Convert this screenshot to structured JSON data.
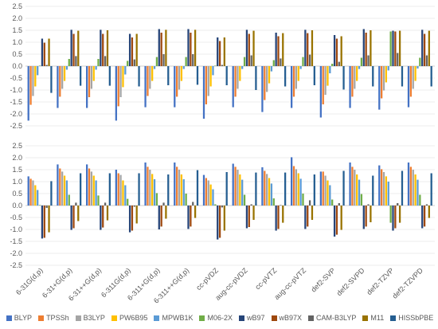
{
  "chart_data": [
    {
      "type": "bar",
      "panel": "top",
      "ylim": [
        -2.5,
        2.5
      ],
      "yticks": [
        "2.5",
        "2.0",
        "1.5",
        "1.0",
        "0.5",
        "0.0",
        "-0.5",
        "-1.0",
        "-1.5",
        "-2.0",
        "-2.5"
      ],
      "categories": [
        "6-31G(d,p)",
        "6-31+G(d,p)",
        "6-31++G(d,p)",
        "6-311G(d,p)",
        "6-311+G(d,p)",
        "6-311++G(d,p)",
        "cc-pVDZ",
        "aug-cc-pVDZ",
        "cc-pVTZ",
        "aug-cc-pVTZ",
        "def2-SVP",
        "def2-SVPD",
        "def2-TZVP",
        "def2-TZVPD"
      ],
      "series": [
        {
          "name": "BLYP",
          "values": [
            -2.28,
            -1.75,
            -1.75,
            -2.28,
            -1.72,
            -1.72,
            -2.2,
            -1.72,
            -1.92,
            -1.75,
            -2.15,
            -1.75,
            -1.82,
            -1.72
          ]
        },
        {
          "name": "TPSSh",
          "values": [
            -1.62,
            -1.28,
            -1.3,
            -1.68,
            -1.25,
            -1.28,
            -1.6,
            -1.28,
            -1.42,
            -1.28,
            -1.6,
            -1.28,
            -1.35,
            -1.28
          ]
        },
        {
          "name": "B3LYP",
          "values": [
            -1.25,
            -0.95,
            -0.95,
            -1.3,
            -0.95,
            -0.98,
            -1.25,
            -0.95,
            -1.08,
            -0.95,
            -1.2,
            -0.95,
            -1.02,
            -0.95
          ]
        },
        {
          "name": "PW6B95",
          "values": [
            -0.85,
            -0.62,
            -0.62,
            -0.88,
            -0.62,
            -0.62,
            -0.85,
            -0.62,
            -0.72,
            -0.62,
            -0.82,
            -0.62,
            -0.68,
            -0.62
          ]
        },
        {
          "name": "MPWB1K",
          "values": [
            -0.38,
            -0.15,
            -0.15,
            -0.35,
            -0.12,
            -0.12,
            -0.38,
            -0.12,
            -0.22,
            -0.12,
            -0.3,
            -0.12,
            -0.18,
            -0.1
          ]
        },
        {
          "name": "M06-2X",
          "values": [
            0.02,
            0.3,
            0.3,
            0.22,
            0.38,
            0.38,
            0.02,
            0.38,
            0.25,
            0.38,
            0.1,
            0.35,
            1.45,
            0.35
          ]
        },
        {
          "name": "wB97",
          "values": [
            1.15,
            1.52,
            1.52,
            1.35,
            1.55,
            1.55,
            1.2,
            1.52,
            1.4,
            1.52,
            1.3,
            1.55,
            1.48,
            1.52
          ]
        },
        {
          "name": "wB97X",
          "values": [
            0.98,
            1.35,
            1.35,
            1.2,
            1.4,
            1.4,
            1.05,
            1.35,
            1.25,
            1.38,
            1.15,
            1.4,
            1.45,
            1.35
          ]
        },
        {
          "name": "CAM-B3LYP",
          "values": [
            0.05,
            0.42,
            0.42,
            0.28,
            0.5,
            0.5,
            0.05,
            0.45,
            0.32,
            0.48,
            0.18,
            0.45,
            0.55,
            0.45
          ]
        },
        {
          "name": "M11",
          "values": [
            1.15,
            1.48,
            1.5,
            1.35,
            1.52,
            1.52,
            1.2,
            1.48,
            1.38,
            1.5,
            1.25,
            1.5,
            1.48,
            1.48
          ]
        },
        {
          "name": "HISSbPBE",
          "values": [
            -1.12,
            -0.82,
            -0.82,
            -0.85,
            -0.8,
            -0.78,
            -0.8,
            -1.0,
            -0.85,
            -0.8,
            -0.98,
            -0.85,
            -0.85,
            -0.85
          ]
        }
      ]
    },
    {
      "type": "bar",
      "panel": "bottom",
      "ylim": [
        -2.5,
        2.5
      ],
      "yticks": [
        "2.5",
        "2.0",
        "1.5",
        "1.0",
        "0.5",
        "0.0",
        "-0.5",
        "-1.0",
        "-1.5",
        "-2.0",
        "-2.5"
      ],
      "categories": [
        "6-31G(d,p)",
        "6-31+G(d,p)",
        "6-31++G(d,p)",
        "6-311G(d,p)",
        "6-311+G(d,p)",
        "6-311++G(d,p)",
        "cc-pVDZ",
        "aug-cc-pVDZ",
        "cc-pVTZ",
        "aug-cc-pVTZ",
        "def2-SVP",
        "def2-SVPD",
        "def2-TZVP",
        "def2-TZVPD"
      ],
      "series": [
        {
          "name": "BLYP",
          "values": [
            1.22,
            1.72,
            1.72,
            1.5,
            1.8,
            1.8,
            1.28,
            1.75,
            1.6,
            2.02,
            1.42,
            1.8,
            1.68,
            1.8
          ]
        },
        {
          "name": "TPSSh",
          "values": [
            1.12,
            1.55,
            1.55,
            1.35,
            1.62,
            1.62,
            1.15,
            1.62,
            1.45,
            1.65,
            1.42,
            1.62,
            1.52,
            1.62
          ]
        },
        {
          "name": "B3LYP",
          "values": [
            1.05,
            1.42,
            1.42,
            1.28,
            1.5,
            1.5,
            1.05,
            1.5,
            1.32,
            1.52,
            1.25,
            1.5,
            1.4,
            1.5
          ]
        },
        {
          "name": "PW6B95",
          "values": [
            0.85,
            1.25,
            1.25,
            1.05,
            1.32,
            1.3,
            0.88,
            1.3,
            1.15,
            1.35,
            1.05,
            1.3,
            1.22,
            1.3
          ]
        },
        {
          "name": "MPWB1K",
          "values": [
            0.65,
            1.05,
            1.05,
            0.85,
            1.1,
            1.1,
            0.68,
            1.08,
            0.92,
            1.12,
            0.85,
            1.08,
            1.0,
            1.08
          ]
        },
        {
          "name": "M06-2X",
          "values": [
            0.02,
            0.45,
            0.42,
            0.28,
            0.52,
            0.5,
            0.05,
            0.45,
            0.3,
            0.5,
            0.25,
            0.48,
            -0.72,
            0.45
          ]
        },
        {
          "name": "wB97",
          "values": [
            -1.38,
            -1.02,
            -1.02,
            -1.12,
            -1.0,
            -0.98,
            -1.42,
            -0.95,
            -1.05,
            -0.98,
            -1.3,
            -0.98,
            -1.05,
            -0.95
          ]
        },
        {
          "name": "wB97X",
          "values": [
            -1.35,
            -0.95,
            -0.92,
            -1.05,
            -0.88,
            -0.88,
            -1.35,
            -0.9,
            -0.98,
            -0.88,
            -1.22,
            -0.88,
            -0.95,
            -0.88
          ]
        },
        {
          "name": "CAM-B3LYP",
          "values": [
            -0.1,
            0.12,
            0.12,
            -0.05,
            0.12,
            0.15,
            -0.08,
            0.05,
            0.02,
            0.22,
            0.1,
            0.05,
            0.1,
            0.05
          ]
        },
        {
          "name": "M11",
          "values": [
            -1.12,
            -0.65,
            -0.62,
            -0.75,
            -0.55,
            -0.52,
            -1.05,
            -0.6,
            -0.72,
            -0.6,
            -1.02,
            -0.7,
            -0.72,
            -0.52
          ]
        },
        {
          "name": "HISSbPBE",
          "values": [
            1.02,
            1.35,
            1.35,
            1.35,
            1.3,
            1.48,
            1.4,
            1.38,
            1.38,
            1.3,
            1.45,
            1.25,
            1.45,
            1.35
          ]
        }
      ]
    }
  ],
  "colors": [
    "#4472c4",
    "#ed7d31",
    "#a5a5a5",
    "#ffc000",
    "#5b9bd5",
    "#70ad47",
    "#264478",
    "#9e480e",
    "#636363",
    "#997300",
    "#255e91"
  ],
  "legend": [
    "BLYP",
    "TPSSh",
    "B3LYP",
    "PW6B95",
    "MPWB1K",
    "M06-2X",
    "wB97",
    "wB97X",
    "CAM-B3LYP",
    "M11",
    "HISSbPBE"
  ]
}
